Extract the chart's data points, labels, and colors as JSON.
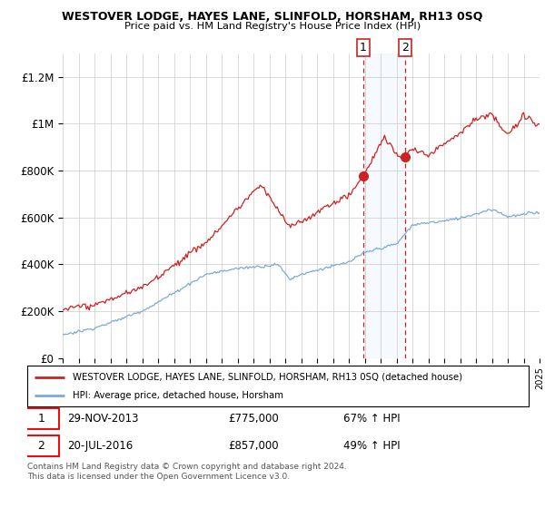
{
  "title": "WESTOVER LODGE, HAYES LANE, SLINFOLD, HORSHAM, RH13 0SQ",
  "subtitle": "Price paid vs. HM Land Registry's House Price Index (HPI)",
  "ylim": [
    0,
    1300000
  ],
  "yticks": [
    0,
    200000,
    400000,
    600000,
    800000,
    1000000,
    1200000
  ],
  "ytick_labels": [
    "£0",
    "£200K",
    "£400K",
    "£600K",
    "£800K",
    "£1M",
    "£1.2M"
  ],
  "x_start_year": 1995,
  "x_end_year": 2025,
  "red_line_color": "#cc2222",
  "blue_line_color": "#7aaadd",
  "sale1_date": 2013.91,
  "sale1_price": 775000,
  "sale2_date": 2016.55,
  "sale2_price": 857000,
  "sale1_label": "1",
  "sale2_label": "2",
  "sale1_text": "29-NOV-2013",
  "sale1_amount": "£775,000",
  "sale1_hpi": "67% ↑ HPI",
  "sale2_text": "20-JUL-2016",
  "sale2_amount": "£857,000",
  "sale2_hpi": "49% ↑ HPI",
  "legend_label1": "WESTOVER LODGE, HAYES LANE, SLINFOLD, HORSHAM, RH13 0SQ (detached house)",
  "legend_label2": "HPI: Average price, detached house, Horsham",
  "footnote": "Contains HM Land Registry data © Crown copyright and database right 2024.\nThis data is licensed under the Open Government Licence v3.0.",
  "background_color": "#ffffff",
  "grid_color": "#cccccc"
}
